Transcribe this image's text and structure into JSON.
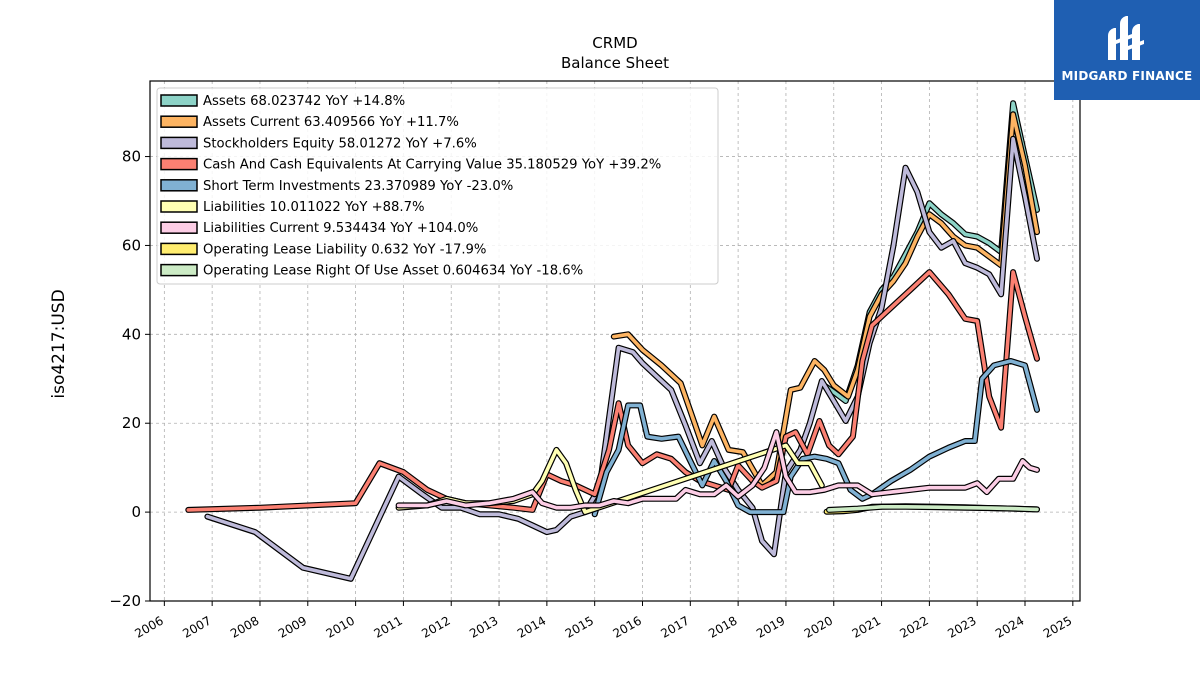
{
  "logo": {
    "text": "MIDGARD FINANCE",
    "color": "#1f5fb2"
  },
  "chart_data": {
    "type": "line",
    "title": "CRMD",
    "subtitle": "Balance  Sheet",
    "xlabel": "",
    "ylabel": "iso4217:USD",
    "xlim": [
      2005.7,
      2025.15
    ],
    "ylim": [
      -20,
      97
    ],
    "x_ticks": [
      "2006",
      "2007",
      "2008",
      "2009",
      "2010",
      "2011",
      "2012",
      "2013",
      "2014",
      "2015",
      "2016",
      "2017",
      "2018",
      "2019",
      "2020",
      "2021",
      "2022",
      "2023",
      "2024",
      "2025"
    ],
    "y_ticks": [
      "−20",
      "0",
      "20",
      "40",
      "60",
      "80"
    ],
    "y_tick_values": [
      -20,
      0,
      20,
      40,
      60,
      80
    ],
    "grid": true,
    "legend_position": "top-left",
    "series": [
      {
        "name": "Assets  68.023742 YoY +14.8%",
        "color": "#8dd3c7",
        "points": [
          [
            2019.8,
            28.5
          ],
          [
            2020.0,
            27
          ],
          [
            2020.25,
            25
          ],
          [
            2020.5,
            33
          ],
          [
            2020.75,
            45
          ],
          [
            2021.0,
            50
          ],
          [
            2021.25,
            53
          ],
          [
            2021.5,
            58
          ],
          [
            2021.75,
            63
          ],
          [
            2022.0,
            69.5
          ],
          [
            2022.25,
            67
          ],
          [
            2022.5,
            65
          ],
          [
            2022.75,
            62.5
          ],
          [
            2023.0,
            62
          ],
          [
            2023.25,
            60.5
          ],
          [
            2023.5,
            58.5
          ],
          [
            2023.75,
            92
          ],
          [
            2024.0,
            80
          ],
          [
            2024.25,
            68
          ]
        ]
      },
      {
        "name": "Assets Current  63.409566 YoY +11.7%",
        "color": "#fdb462",
        "points": [
          [
            2015.4,
            39.5
          ],
          [
            2015.7,
            40
          ],
          [
            2016.0,
            36.5
          ],
          [
            2016.4,
            33
          ],
          [
            2016.8,
            29
          ],
          [
            2017.25,
            15
          ],
          [
            2017.5,
            21.5
          ],
          [
            2017.8,
            14
          ],
          [
            2018.1,
            13.5
          ],
          [
            2018.5,
            6
          ],
          [
            2018.8,
            9
          ],
          [
            2019.1,
            27.5
          ],
          [
            2019.3,
            28
          ],
          [
            2019.6,
            34
          ],
          [
            2019.8,
            32
          ],
          [
            2020.0,
            28.5
          ],
          [
            2020.3,
            26
          ],
          [
            2020.5,
            32
          ],
          [
            2020.75,
            44
          ],
          [
            2021.0,
            49
          ],
          [
            2021.25,
            52
          ],
          [
            2021.5,
            56
          ],
          [
            2021.75,
            62
          ],
          [
            2022.0,
            67
          ],
          [
            2022.25,
            65
          ],
          [
            2022.5,
            62
          ],
          [
            2022.75,
            60
          ],
          [
            2023.0,
            59.5
          ],
          [
            2023.25,
            57.5
          ],
          [
            2023.5,
            55.5
          ],
          [
            2023.75,
            89.5
          ],
          [
            2024.0,
            78
          ],
          [
            2024.25,
            63
          ]
        ]
      },
      {
        "name": "Stockholders Equity  58.01272 YoY +7.6%",
        "color": "#bebada",
        "points": [
          [
            2006.9,
            -1
          ],
          [
            2007.9,
            -4.5
          ],
          [
            2008.9,
            -12.5
          ],
          [
            2009.9,
            -15
          ],
          [
            2010.9,
            8
          ],
          [
            2011.4,
            4
          ],
          [
            2011.8,
            1
          ],
          [
            2012.2,
            1
          ],
          [
            2012.6,
            -0.5
          ],
          [
            2013.0,
            -0.5
          ],
          [
            2013.4,
            -1.5
          ],
          [
            2013.7,
            -3
          ],
          [
            2014.0,
            -4.5
          ],
          [
            2014.2,
            -4
          ],
          [
            2014.5,
            -1
          ],
          [
            2014.8,
            0
          ],
          [
            2015.1,
            5.5
          ],
          [
            2015.5,
            37
          ],
          [
            2015.8,
            36
          ],
          [
            2016.0,
            33.5
          ],
          [
            2016.3,
            30.5
          ],
          [
            2016.6,
            27.5
          ],
          [
            2016.9,
            19.5
          ],
          [
            2017.2,
            11
          ],
          [
            2017.45,
            16
          ],
          [
            2017.7,
            10
          ],
          [
            2018.0,
            5
          ],
          [
            2018.3,
            1
          ],
          [
            2018.5,
            -6.5
          ],
          [
            2018.75,
            -9.5
          ],
          [
            2019.0,
            9
          ],
          [
            2019.3,
            14
          ],
          [
            2019.5,
            20
          ],
          [
            2019.75,
            29.5
          ],
          [
            2020.0,
            25
          ],
          [
            2020.25,
            20.5
          ],
          [
            2020.5,
            26
          ],
          [
            2020.75,
            38
          ],
          [
            2021.0,
            46
          ],
          [
            2021.25,
            60
          ],
          [
            2021.5,
            77.5
          ],
          [
            2021.75,
            72
          ],
          [
            2022.0,
            63
          ],
          [
            2022.25,
            59.5
          ],
          [
            2022.5,
            61
          ],
          [
            2022.75,
            56
          ],
          [
            2023.0,
            55
          ],
          [
            2023.25,
            53.5
          ],
          [
            2023.5,
            49
          ],
          [
            2023.75,
            84
          ],
          [
            2024.0,
            71
          ],
          [
            2024.25,
            57
          ]
        ]
      },
      {
        "name": "Cash And Cash Equivalents At Carrying Value  35.180529 YoY +39.2%",
        "color": "#fb8072",
        "points": [
          [
            2006.5,
            0.5
          ],
          [
            2008.0,
            1
          ],
          [
            2010.0,
            2
          ],
          [
            2010.5,
            11
          ],
          [
            2011.0,
            9
          ],
          [
            2011.5,
            5
          ],
          [
            2011.9,
            3
          ],
          [
            2012.3,
            2
          ],
          [
            2012.8,
            1.5
          ],
          [
            2013.3,
            1
          ],
          [
            2013.7,
            0.5
          ],
          [
            2014.0,
            8.5
          ],
          [
            2014.3,
            7
          ],
          [
            2014.6,
            6
          ],
          [
            2015.0,
            4
          ],
          [
            2015.3,
            14
          ],
          [
            2015.5,
            24.5
          ],
          [
            2015.7,
            15
          ],
          [
            2016.0,
            11
          ],
          [
            2016.3,
            13
          ],
          [
            2016.6,
            12
          ],
          [
            2016.9,
            9
          ],
          [
            2017.2,
            7
          ],
          [
            2017.5,
            6
          ],
          [
            2017.8,
            5
          ],
          [
            2018.0,
            10.5
          ],
          [
            2018.3,
            7
          ],
          [
            2018.5,
            5.5
          ],
          [
            2018.8,
            7
          ],
          [
            2019.0,
            17
          ],
          [
            2019.2,
            18
          ],
          [
            2019.45,
            13
          ],
          [
            2019.7,
            20.5
          ],
          [
            2019.9,
            15
          ],
          [
            2020.1,
            13
          ],
          [
            2020.4,
            17
          ],
          [
            2020.6,
            34
          ],
          [
            2020.8,
            42
          ],
          [
            2021.2,
            46
          ],
          [
            2021.6,
            50
          ],
          [
            2022.0,
            54
          ],
          [
            2022.4,
            49
          ],
          [
            2022.75,
            43.5
          ],
          [
            2023.0,
            43
          ],
          [
            2023.25,
            26
          ],
          [
            2023.5,
            19
          ],
          [
            2023.75,
            54
          ],
          [
            2024.0,
            44
          ],
          [
            2024.25,
            34.5
          ]
        ]
      },
      {
        "name": "Short Term Investments  23.370989 YoY -23.0%",
        "color": "#80b1d3",
        "points": [
          [
            2015.0,
            -0.5
          ],
          [
            2015.25,
            9
          ],
          [
            2015.5,
            14
          ],
          [
            2015.7,
            24
          ],
          [
            2015.95,
            24
          ],
          [
            2016.1,
            17
          ],
          [
            2016.4,
            16.5
          ],
          [
            2016.75,
            17
          ],
          [
            2017.0,
            11.5
          ],
          [
            2017.25,
            6
          ],
          [
            2017.5,
            11.5
          ],
          [
            2017.75,
            7
          ],
          [
            2018.0,
            1.5
          ],
          [
            2018.25,
            0
          ],
          [
            2018.75,
            0
          ],
          [
            2018.95,
            0
          ],
          [
            2019.1,
            8
          ],
          [
            2019.35,
            12
          ],
          [
            2019.6,
            12.5
          ],
          [
            2019.85,
            12
          ],
          [
            2020.1,
            11
          ],
          [
            2020.35,
            5
          ],
          [
            2020.6,
            3
          ],
          [
            2020.8,
            4
          ],
          [
            2021.2,
            7
          ],
          [
            2021.6,
            9.5
          ],
          [
            2022.0,
            12.5
          ],
          [
            2022.4,
            14.5
          ],
          [
            2022.75,
            16
          ],
          [
            2022.95,
            16
          ],
          [
            2023.1,
            30
          ],
          [
            2023.35,
            33
          ],
          [
            2023.7,
            34
          ],
          [
            2024.0,
            33
          ],
          [
            2024.25,
            23
          ]
        ]
      },
      {
        "name": "Liabilities  10.011022 YoY +88.7%",
        "color": "#ffffb3",
        "points": [
          [
            2010.9,
            1
          ],
          [
            2011.5,
            1.5
          ],
          [
            2011.9,
            3
          ],
          [
            2012.3,
            2
          ],
          [
            2012.8,
            2
          ],
          [
            2013.3,
            2.5
          ],
          [
            2013.7,
            4
          ],
          [
            2013.9,
            7
          ],
          [
            2014.2,
            14
          ],
          [
            2014.4,
            11
          ],
          [
            2014.6,
            5
          ],
          [
            2014.8,
            0
          ],
          [
            2019.0,
            15
          ],
          [
            2019.25,
            11
          ],
          [
            2019.5,
            11
          ],
          [
            2019.75,
            6
          ]
        ]
      },
      {
        "name": "Liabilities Current  9.534434 YoY +104.0%",
        "color": "#fccde5",
        "points": [
          [
            2010.9,
            1.5
          ],
          [
            2011.5,
            1.5
          ],
          [
            2011.9,
            2.5
          ],
          [
            2012.3,
            1.5
          ],
          [
            2012.8,
            2
          ],
          [
            2013.3,
            3
          ],
          [
            2013.7,
            4.5
          ],
          [
            2013.9,
            2
          ],
          [
            2014.2,
            1
          ],
          [
            2014.5,
            1
          ],
          [
            2014.8,
            1.5
          ],
          [
            2015.1,
            1.5
          ],
          [
            2015.4,
            2.5
          ],
          [
            2015.7,
            2
          ],
          [
            2016.0,
            3
          ],
          [
            2016.3,
            3
          ],
          [
            2016.7,
            3
          ],
          [
            2016.9,
            5
          ],
          [
            2017.2,
            4
          ],
          [
            2017.5,
            4
          ],
          [
            2017.75,
            6
          ],
          [
            2018.0,
            3.5
          ],
          [
            2018.3,
            6
          ],
          [
            2018.55,
            10
          ],
          [
            2018.8,
            18
          ],
          [
            2019.0,
            8
          ],
          [
            2019.2,
            4.5
          ],
          [
            2019.5,
            4.5
          ],
          [
            2019.8,
            5
          ],
          [
            2020.1,
            6
          ],
          [
            2020.5,
            6
          ],
          [
            2020.8,
            4
          ],
          [
            2021.2,
            4.5
          ],
          [
            2021.6,
            5
          ],
          [
            2022.0,
            5.5
          ],
          [
            2022.4,
            5.5
          ],
          [
            2022.75,
            5.5
          ],
          [
            2023.0,
            6.5
          ],
          [
            2023.2,
            4.5
          ],
          [
            2023.45,
            7.5
          ],
          [
            2023.75,
            7.5
          ],
          [
            2023.95,
            11.5
          ],
          [
            2024.1,
            10
          ],
          [
            2024.25,
            9.5
          ]
        ]
      },
      {
        "name": "Operating Lease Liability  0.632 YoY -17.9%",
        "color": "#ffed6f",
        "points": [
          [
            2019.85,
            0.1
          ],
          [
            2020.2,
            0.2
          ],
          [
            2020.5,
            0.5
          ],
          [
            2020.8,
            1.2
          ],
          [
            2021.5,
            1.3
          ],
          [
            2022.2,
            1.2
          ],
          [
            2022.75,
            1.1
          ],
          [
            2023.3,
            0.9
          ],
          [
            2023.75,
            0.8
          ],
          [
            2024.25,
            0.6
          ]
        ]
      },
      {
        "name": "Operating Lease Right Of Use Asset  0.604634 YoY -18.6%",
        "color": "#ccebc5",
        "points": [
          [
            2019.9,
            0.5
          ],
          [
            2020.5,
            0.8
          ],
          [
            2021.0,
            1.2
          ],
          [
            2021.5,
            1.2
          ],
          [
            2022.2,
            1.1
          ],
          [
            2022.75,
            1.0
          ],
          [
            2023.3,
            0.9
          ],
          [
            2023.75,
            0.8
          ],
          [
            2024.25,
            0.6
          ]
        ]
      }
    ]
  }
}
